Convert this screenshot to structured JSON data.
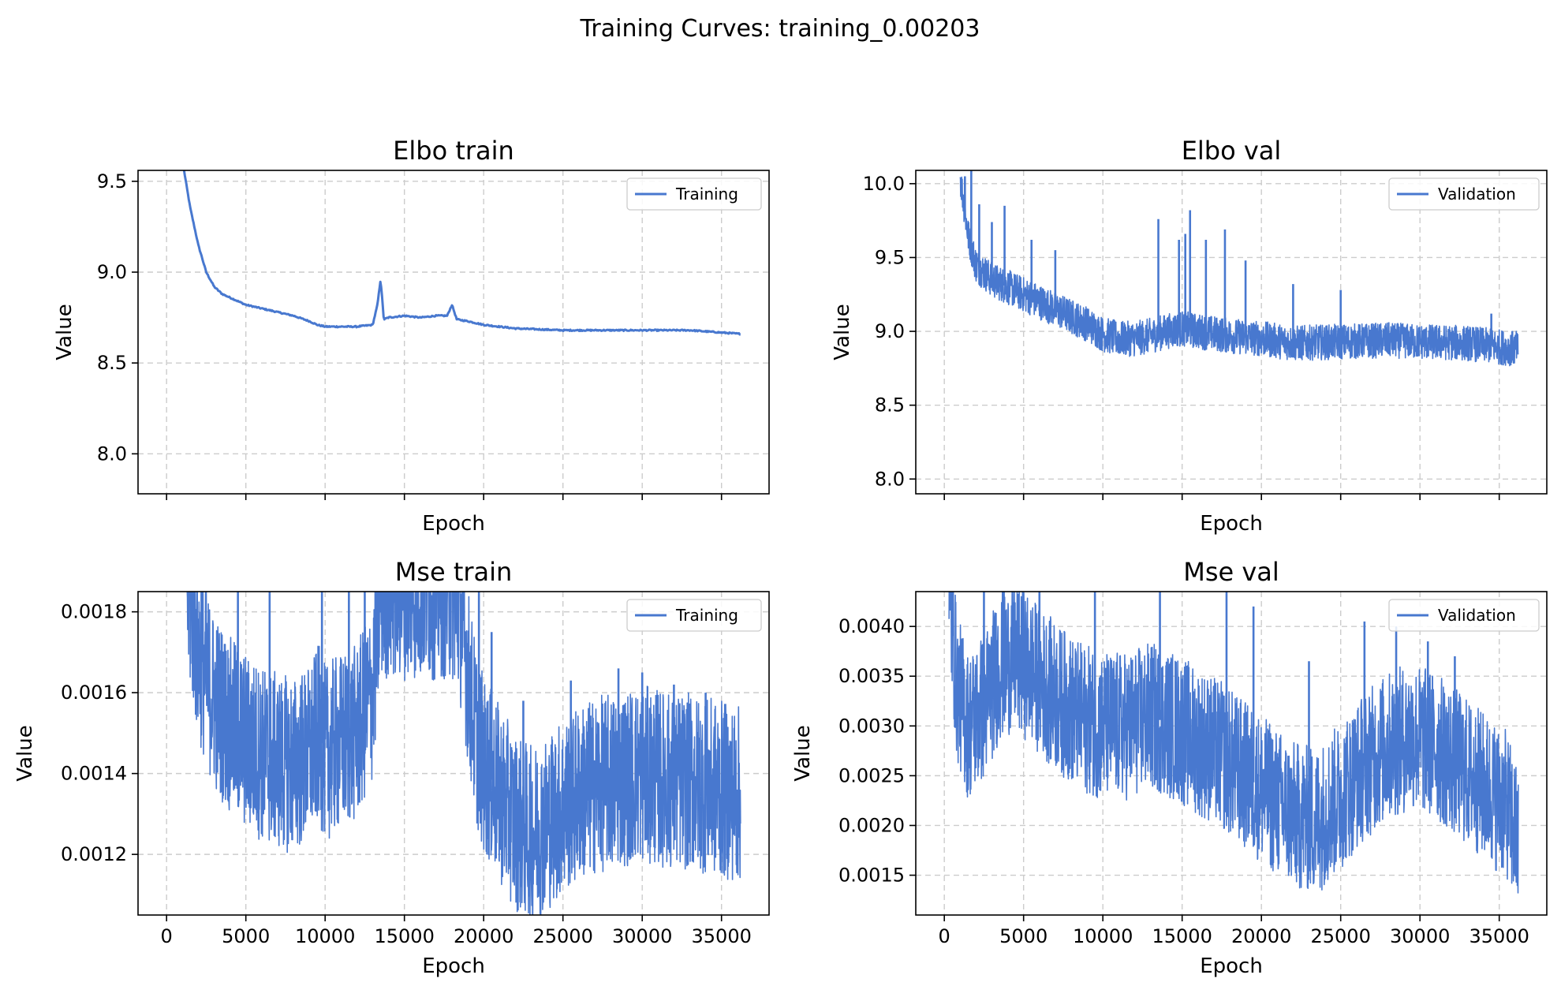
{
  "figure": {
    "suptitle": "Training Curves: training_0.00203"
  },
  "colors": {
    "series": "#4878cf",
    "grid": "#cccccc"
  },
  "chart_data": [
    {
      "id": "elbo-train",
      "type": "line",
      "title": "Elbo train",
      "xlabel": "Epoch",
      "ylabel": "Value",
      "xlim": [
        -1800,
        38000
      ],
      "ylim": [
        7.78,
        9.56
      ],
      "xticks": [
        0,
        5000,
        10000,
        15000,
        20000,
        25000,
        30000,
        35000
      ],
      "xticklabels_visible": false,
      "yticks": [
        8.0,
        8.5,
        9.0,
        9.5
      ],
      "yticklabels": [
        "8.0",
        "8.5",
        "9.0",
        "9.5"
      ],
      "grid": true,
      "legend": {
        "position": "top-right"
      },
      "noise": 0,
      "series": [
        {
          "name": "Training",
          "x": [
            1100,
            1500,
            2000,
            2500,
            3000,
            3500,
            4000,
            4500,
            5000,
            6000,
            7000,
            8000,
            9000,
            9500,
            10000,
            11000,
            12000,
            13000,
            13300,
            13500,
            13700,
            14000,
            15000,
            16000,
            17000,
            17700,
            18000,
            18300,
            19000,
            20000,
            22000,
            25000,
            28000,
            30000,
            33000,
            36200
          ],
          "y": [
            9.56,
            9.35,
            9.15,
            9.0,
            8.92,
            8.88,
            8.86,
            8.84,
            8.82,
            8.8,
            8.78,
            8.76,
            8.73,
            8.71,
            8.7,
            8.7,
            8.7,
            8.71,
            8.82,
            8.96,
            8.74,
            8.75,
            8.76,
            8.75,
            8.76,
            8.76,
            8.82,
            8.74,
            8.73,
            8.71,
            8.69,
            8.68,
            8.68,
            8.68,
            8.68,
            8.66
          ]
        }
      ]
    },
    {
      "id": "elbo-val",
      "type": "line",
      "title": "Elbo val",
      "xlabel": "Epoch",
      "ylabel": "Value",
      "xlim": [
        -1800,
        38000
      ],
      "ylim": [
        7.9,
        10.09
      ],
      "xticks": [
        0,
        5000,
        10000,
        15000,
        20000,
        25000,
        30000,
        35000
      ],
      "xticklabels_visible": false,
      "yticks": [
        8.0,
        8.5,
        9.0,
        9.5,
        10.0
      ],
      "yticklabels": [
        "8.0",
        "8.5",
        "9.0",
        "9.5",
        "10.0"
      ],
      "grid": true,
      "legend": {
        "position": "top-right"
      },
      "noise": 0.12,
      "series": [
        {
          "name": "Validation",
          "x": [
            1000,
            1500,
            2000,
            3000,
            4000,
            5000,
            6000,
            7000,
            8000,
            9000,
            10000,
            11000,
            12000,
            13000,
            14000,
            15000,
            16000,
            18000,
            20000,
            22000,
            25000,
            28000,
            30000,
            33000,
            36200
          ],
          "y": [
            10.05,
            9.65,
            9.45,
            9.35,
            9.3,
            9.25,
            9.2,
            9.15,
            9.1,
            9.05,
            8.98,
            8.95,
            8.95,
            8.97,
            9.0,
            9.02,
            9.0,
            8.97,
            8.95,
            8.92,
            8.93,
            8.94,
            8.93,
            8.92,
            8.88
          ]
        }
      ],
      "spikes": [
        [
          1300,
          10.05
        ],
        [
          1700,
          10.09
        ],
        [
          2200,
          9.86
        ],
        [
          3000,
          9.74
        ],
        [
          3800,
          9.85
        ],
        [
          5500,
          9.62
        ],
        [
          7000,
          9.55
        ],
        [
          13500,
          9.76
        ],
        [
          14800,
          9.62
        ],
        [
          15200,
          9.66
        ],
        [
          15500,
          9.82
        ],
        [
          16500,
          9.62
        ],
        [
          17700,
          9.69
        ],
        [
          19000,
          9.48
        ],
        [
          22000,
          9.32
        ],
        [
          25000,
          9.28
        ],
        [
          34500,
          9.12
        ]
      ]
    },
    {
      "id": "mse-train",
      "type": "line",
      "title": "Mse train",
      "xlabel": "Epoch",
      "ylabel": "Value",
      "xlim": [
        -1800,
        38000
      ],
      "ylim": [
        0.00105,
        0.00185
      ],
      "xticks": [
        0,
        5000,
        10000,
        15000,
        20000,
        25000,
        30000,
        35000
      ],
      "xticklabels": [
        "0",
        "5000",
        "10000",
        "15000",
        "20000",
        "25000",
        "30000",
        "35000"
      ],
      "xticklabels_visible": true,
      "yticks": [
        0.0012,
        0.0014,
        0.0016,
        0.0018
      ],
      "yticklabels": [
        "0.0012",
        "0.0014",
        "0.0016",
        "0.0018"
      ],
      "grid": true,
      "legend": {
        "position": "top-right"
      },
      "noise": 0.00022,
      "series": [
        {
          "name": "Training",
          "x": [
            1300,
            1600,
            2000,
            3000,
            4000,
            5000,
            6000,
            7000,
            8000,
            9000,
            9600,
            10000,
            11000,
            12000,
            13000,
            13500,
            14000,
            15000,
            16000,
            17000,
            18000,
            18500,
            19000,
            19500,
            20000,
            21000,
            22000,
            23000,
            24000,
            25000,
            26000,
            27000,
            28000,
            29000,
            30000,
            31000,
            32000,
            33000,
            34000,
            35000,
            36000,
            36200
          ],
          "y": [
            0.00185,
            0.0018,
            0.0017,
            0.00158,
            0.00152,
            0.00148,
            0.00145,
            0.00143,
            0.00142,
            0.00145,
            0.0015,
            0.00145,
            0.00148,
            0.0015,
            0.0016,
            0.00185,
            0.00185,
            0.00185,
            0.00185,
            0.00185,
            0.00185,
            0.0018,
            0.00165,
            0.0015,
            0.00142,
            0.00135,
            0.00128,
            0.00125,
            0.00128,
            0.00132,
            0.00135,
            0.00137,
            0.00138,
            0.00139,
            0.0014,
            0.00139,
            0.00138,
            0.00138,
            0.00137,
            0.00136,
            0.00135,
            0.00135
          ]
        }
      ],
      "spikes": [
        [
          2200,
          0.00185
        ],
        [
          4500,
          0.00185
        ],
        [
          6500,
          0.00185
        ],
        [
          9800,
          0.00185
        ],
        [
          11500,
          0.00185
        ],
        [
          12500,
          0.00185
        ],
        [
          19700,
          0.00185
        ],
        [
          20500,
          0.00175
        ],
        [
          22500,
          0.00158
        ],
        [
          25500,
          0.00163
        ],
        [
          28500,
          0.00166
        ],
        [
          30000,
          0.00165
        ],
        [
          32000,
          0.00162
        ],
        [
          34000,
          0.0016
        ],
        [
          35200,
          0.00155
        ]
      ]
    },
    {
      "id": "mse-val",
      "type": "line",
      "title": "Mse val",
      "xlabel": "Epoch",
      "ylabel": "Value",
      "xlim": [
        -1800,
        38000
      ],
      "ylim": [
        0.0011,
        0.00435
      ],
      "xticks": [
        0,
        5000,
        10000,
        15000,
        20000,
        25000,
        30000,
        35000
      ],
      "xticklabels": [
        "0",
        "5000",
        "10000",
        "15000",
        "20000",
        "25000",
        "30000",
        "35000"
      ],
      "xticklabels_visible": true,
      "yticks": [
        0.0015,
        0.002,
        0.0025,
        0.003,
        0.0035,
        0.004
      ],
      "yticklabels": [
        "0.0015",
        "0.0020",
        "0.0025",
        "0.0030",
        "0.0035",
        "0.0040"
      ],
      "grid": true,
      "legend": {
        "position": "top-right"
      },
      "noise": 0.00075,
      "series": [
        {
          "name": "Validation",
          "x": [
            300,
            800,
            1500,
            2500,
            3500,
            4500,
            5500,
            7000,
            8500,
            10000,
            11500,
            13000,
            14500,
            16000,
            17500,
            19000,
            20500,
            22000,
            23500,
            25000,
            26500,
            28000,
            29500,
            31000,
            32500,
            34000,
            35500,
            36200
          ],
          "y": [
            0.00435,
            0.0034,
            0.003,
            0.0032,
            0.0036,
            0.0037,
            0.00355,
            0.0033,
            0.0031,
            0.003,
            0.003,
            0.0031,
            0.003,
            0.00285,
            0.0027,
            0.0025,
            0.0023,
            0.0021,
            0.00205,
            0.0023,
            0.0026,
            0.0028,
            0.0029,
            0.0028,
            0.0026,
            0.0024,
            0.0022,
            0.0018
          ]
        }
      ],
      "spikes": [
        [
          400,
          0.00435
        ],
        [
          2500,
          0.00435
        ],
        [
          3700,
          0.00435
        ],
        [
          6000,
          0.00435
        ],
        [
          9500,
          0.00435
        ],
        [
          13600,
          0.00435
        ],
        [
          17800,
          0.00435
        ],
        [
          19500,
          0.0042
        ],
        [
          23000,
          0.00365
        ],
        [
          26500,
          0.00405
        ],
        [
          28500,
          0.004
        ],
        [
          30500,
          0.00385
        ],
        [
          32200,
          0.0037
        ]
      ]
    }
  ]
}
